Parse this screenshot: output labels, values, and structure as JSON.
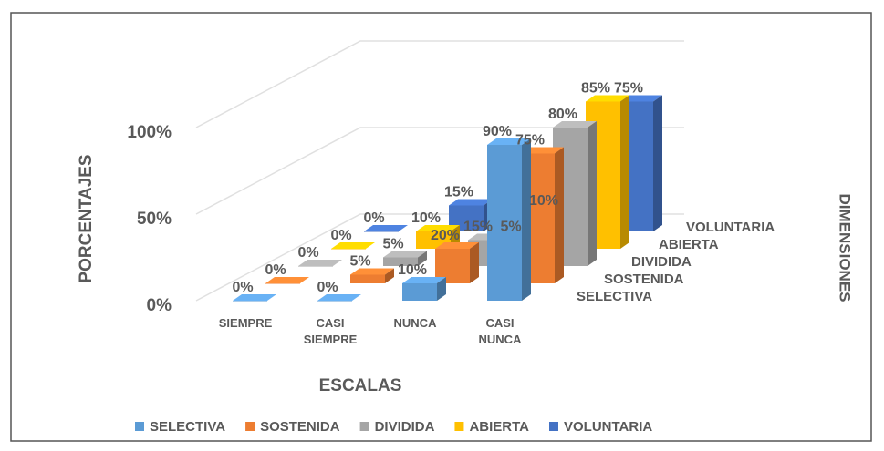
{
  "chart_data": {
    "type": "bar3d",
    "ylabel": "PORCENTAJES",
    "xlabel": "ESCALAS",
    "zlabel": "DIMENSIONES",
    "categories": [
      "SIEMPRE",
      "CASI SIEMPRE",
      "NUNCA",
      "CASI NUNCA"
    ],
    "series": [
      {
        "name": "SELECTIVA",
        "color": "#5b9bd5",
        "values": [
          0,
          0,
          10,
          90
        ],
        "value_labels": [
          "0%",
          "0%",
          "10%",
          "90%"
        ]
      },
      {
        "name": "SOSTENIDA",
        "color": "#ed7d31",
        "values": [
          0,
          5,
          20,
          75
        ],
        "value_labels": [
          "0%",
          "5%",
          "20%",
          "75%"
        ]
      },
      {
        "name": "DIVIDIDA",
        "color": "#a5a5a5",
        "values": [
          0,
          5,
          15,
          80
        ],
        "value_labels": [
          "0%",
          "5%",
          "15%",
          "80%"
        ]
      },
      {
        "name": "ABIERTA",
        "color": "#ffc000",
        "values": [
          0,
          10,
          5,
          85
        ],
        "value_labels": [
          "0%",
          "10%",
          "5%",
          "85%"
        ]
      },
      {
        "name": "VOLUNTARIA",
        "color": "#4472c4",
        "values": [
          0,
          15,
          10,
          75
        ],
        "value_labels": [
          "0%",
          "15%",
          "10%",
          "75%"
        ]
      }
    ],
    "ylim": [
      0,
      100
    ],
    "yticks": [
      {
        "value": 0,
        "label": "0%"
      },
      {
        "value": 50,
        "label": "50%"
      },
      {
        "value": 100,
        "label": "100%"
      }
    ],
    "grid": true,
    "legend": "bottom"
  }
}
